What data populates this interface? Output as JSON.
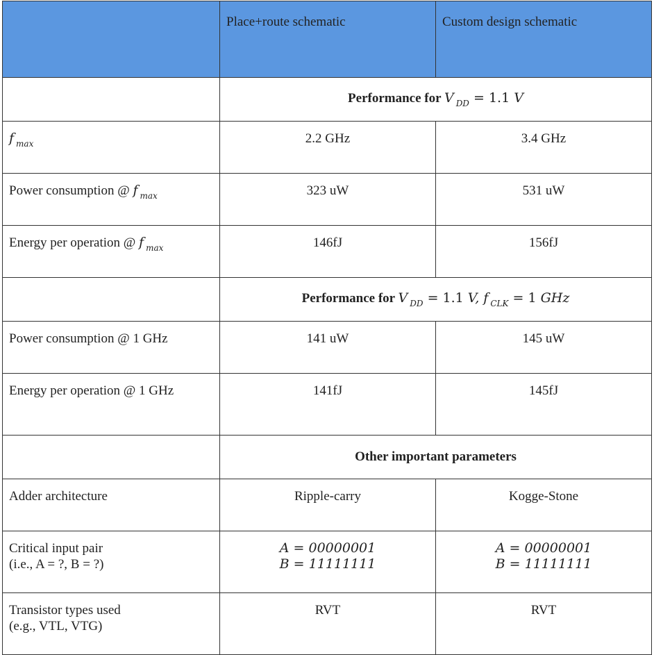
{
  "header": {
    "col2": "Place+route schematic",
    "col3": "Custom design schematic"
  },
  "sections": [
    {
      "title_prefix": "Performance for",
      "title_v": "V",
      "title_vsub": "DD",
      "title_eq": "= 1.1",
      "title_unit": "V"
    },
    {
      "title_prefix": "Performance for",
      "title_v": "V",
      "title_vsub": "DD",
      "title_eq": "= 1.1",
      "title_unit": "V,",
      "title_f": "f",
      "title_fsub": "CLK",
      "title_feq": "= 1",
      "title_funit": "GHz"
    },
    {
      "title": "Other important parameters"
    }
  ],
  "rows": [
    {
      "label_text": "",
      "label_math": "f",
      "label_sub": "max",
      "c2": "2.2 GHz",
      "c3": "3.4 GHz"
    },
    {
      "label_text": "Power consumption @",
      "label_math": "f",
      "label_sub": "max",
      "c2": "323 uW",
      "c3": "531 uW"
    },
    {
      "label_text": "Energy per operation @",
      "label_math": "f",
      "label_sub": "max",
      "c2": "146fJ",
      "c3": "156fJ"
    },
    {
      "label": "Power consumption @ 1 GHz",
      "c2": "141 uW",
      "c3": "145 uW"
    },
    {
      "label": "Energy per operation @ 1 GHz",
      "c2": "141fJ",
      "c3": "145fJ"
    },
    {
      "label": "Adder architecture",
      "c2": "Ripple-carry",
      "c3": "Kogge-Stone"
    },
    {
      "label_l1": "Critical input pair",
      "label_l2": "(i.e., A = ?, B = ?)",
      "c2_a": "A = 00000001",
      "c2_b": "B = 11111111",
      "c3_a": "A = 00000001",
      "c3_b": "B = 11111111"
    },
    {
      "label_l1": "Transistor types used",
      "label_l2": "(e.g., VTL, VTG)",
      "c2": "RVT",
      "c3": "RVT"
    }
  ],
  "colors": {
    "header_bg": "#5b97e0",
    "border": "#333333"
  }
}
